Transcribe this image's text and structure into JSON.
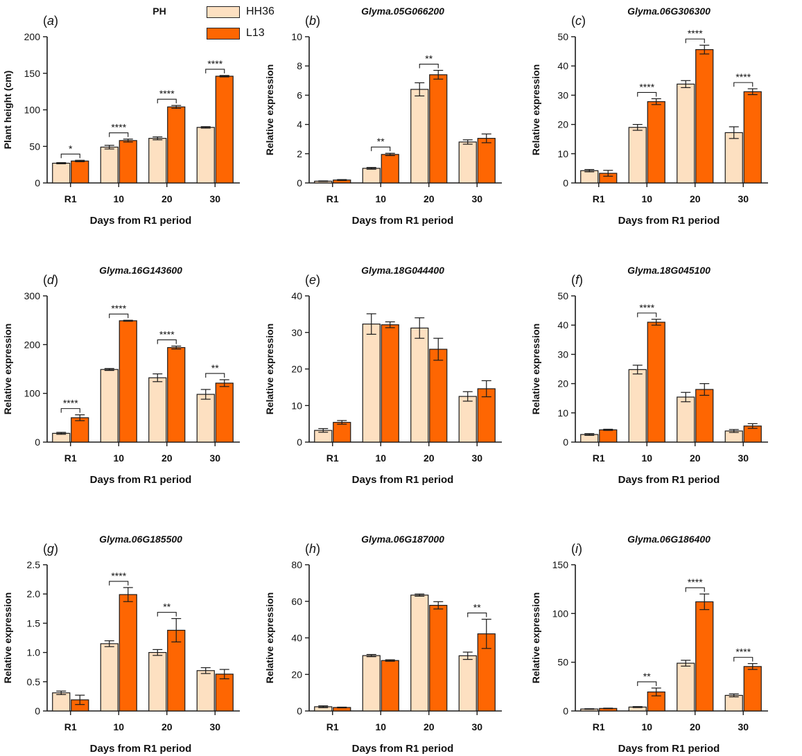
{
  "colors": {
    "HH36": "#fde0c1",
    "L13": "#fe6602",
    "stroke": "#1a1a1a"
  },
  "legend": [
    {
      "name": "HH36",
      "color": "#fde0c1"
    },
    {
      "name": "L13",
      "color": "#fe6602"
    }
  ],
  "chart_data": [
    {
      "type": "bar",
      "panel": "(a)",
      "title": "PH",
      "title_italic": false,
      "categories": [
        "R1",
        "10",
        "20",
        "30"
      ],
      "xlabel": "Days from R1 period",
      "ylabel": "Plant height (cm)",
      "ylim": [
        0,
        200
      ],
      "yticks": [
        "0",
        "50",
        "100",
        "150",
        "200"
      ],
      "series": [
        {
          "name": "HH36",
          "values": [
            27,
            49,
            61,
            76
          ],
          "errors": [
            0.8,
            2.5,
            2,
            1
          ]
        },
        {
          "name": "L13",
          "values": [
            30,
            58,
            104,
            146
          ],
          "errors": [
            1,
            2,
            2,
            1
          ]
        }
      ],
      "significance": [
        "*",
        "****",
        "****",
        "****"
      ]
    },
    {
      "type": "bar",
      "panel": "(b)",
      "title": "Glyma.05G066200",
      "title_italic": true,
      "categories": [
        "R1",
        "10",
        "20",
        "30"
      ],
      "xlabel": "Days from R1 period",
      "ylabel": "Relative expression",
      "ylim": [
        0,
        10
      ],
      "yticks": [
        "0",
        "2",
        "4",
        "6",
        "8",
        "10"
      ],
      "series": [
        {
          "name": "HH36",
          "values": [
            0.12,
            1.0,
            6.4,
            2.8
          ],
          "errors": [
            0.02,
            0.06,
            0.45,
            0.15
          ]
        },
        {
          "name": "L13",
          "values": [
            0.2,
            1.95,
            7.4,
            3.05
          ],
          "errors": [
            0.03,
            0.08,
            0.3,
            0.3
          ]
        }
      ],
      "significance": [
        "",
        "**",
        "**",
        ""
      ]
    },
    {
      "type": "bar",
      "panel": "(c)",
      "title": "Glyma.06G306300",
      "title_italic": true,
      "categories": [
        "R1",
        "10",
        "20",
        "30"
      ],
      "xlabel": "Days from R1 period",
      "ylabel": "Relative expression",
      "ylim": [
        0,
        50
      ],
      "yticks": [
        "0",
        "10",
        "20",
        "30",
        "40",
        "50"
      ],
      "series": [
        {
          "name": "HH36",
          "values": [
            4.2,
            19,
            33.8,
            17.2
          ],
          "errors": [
            0.4,
            1,
            1.2,
            2
          ]
        },
        {
          "name": "L13",
          "values": [
            3.3,
            27.8,
            45.6,
            31.2
          ],
          "errors": [
            1,
            1,
            1.5,
            1
          ]
        }
      ],
      "significance": [
        "",
        "****",
        "****",
        "****"
      ]
    },
    {
      "type": "bar",
      "panel": "(d)",
      "title": "Glyma.16G143600",
      "title_italic": true,
      "categories": [
        "R1",
        "10",
        "20",
        "30"
      ],
      "xlabel": "Days from R1 period",
      "ylabel": "Relative expression",
      "ylim": [
        0,
        300
      ],
      "yticks": [
        "0",
        "100",
        "200",
        "300"
      ],
      "series": [
        {
          "name": "HH36",
          "values": [
            18,
            149,
            132,
            98
          ],
          "errors": [
            2,
            2,
            8,
            10
          ]
        },
        {
          "name": "L13",
          "values": [
            50,
            249,
            194,
            121
          ],
          "errors": [
            6,
            1,
            3,
            7
          ]
        }
      ],
      "significance": [
        "****",
        "****",
        "****",
        "**"
      ]
    },
    {
      "type": "bar",
      "panel": "(e)",
      "title": "Glyma.18G044400",
      "title_italic": true,
      "categories": [
        "R1",
        "10",
        "20",
        "30"
      ],
      "xlabel": "Days from R1 period",
      "ylabel": "Relative expression",
      "ylim": [
        0,
        40
      ],
      "yticks": [
        "0",
        "10",
        "20",
        "30",
        "40"
      ],
      "series": [
        {
          "name": "HH36",
          "values": [
            3.2,
            32.3,
            31.2,
            12.5
          ],
          "errors": [
            0.5,
            2.8,
            2.8,
            1.3
          ]
        },
        {
          "name": "L13",
          "values": [
            5.4,
            32.1,
            25.4,
            14.6
          ],
          "errors": [
            0.5,
            0.8,
            3,
            2.2
          ]
        }
      ],
      "significance": [
        "",
        "",
        "",
        ""
      ]
    },
    {
      "type": "bar",
      "panel": "(f)",
      "title": "Glyma.18G045100",
      "title_italic": true,
      "categories": [
        "R1",
        "10",
        "20",
        "30"
      ],
      "xlabel": "Days from R1 period",
      "ylabel": "Relative expression",
      "ylim": [
        0,
        50
      ],
      "yticks": [
        "0",
        "10",
        "20",
        "30",
        "40",
        "50"
      ],
      "series": [
        {
          "name": "HH36",
          "values": [
            2.6,
            24.8,
            15.4,
            3.8
          ],
          "errors": [
            0.3,
            1.5,
            1.6,
            0.5
          ]
        },
        {
          "name": "L13",
          "values": [
            4.2,
            41,
            18,
            5.5
          ],
          "errors": [
            0.2,
            1,
            2,
            0.8
          ]
        }
      ],
      "significance": [
        "",
        "****",
        "",
        ""
      ]
    },
    {
      "type": "bar",
      "panel": "(g)",
      "title": "Glyma.06G185500",
      "title_italic": true,
      "categories": [
        "R1",
        "10",
        "20",
        "30"
      ],
      "xlabel": "Days from R1 period",
      "ylabel": "Relative expression",
      "ylim": [
        0,
        2.5
      ],
      "yticks": [
        "0",
        "0.5",
        "1.0",
        "1.5",
        "2.0",
        "2.5"
      ],
      "series": [
        {
          "name": "HH36",
          "values": [
            0.31,
            1.15,
            1.0,
            0.69
          ],
          "errors": [
            0.03,
            0.05,
            0.05,
            0.05
          ]
        },
        {
          "name": "L13",
          "values": [
            0.19,
            1.99,
            1.38,
            0.63
          ],
          "errors": [
            0.08,
            0.12,
            0.2,
            0.08
          ]
        }
      ],
      "significance": [
        "",
        "****",
        "**",
        ""
      ]
    },
    {
      "type": "bar",
      "panel": "(h)",
      "title": "Glyma.06G187000",
      "title_italic": true,
      "categories": [
        "R1",
        "10",
        "20",
        "30"
      ],
      "xlabel": "Days from R1 period",
      "ylabel": "Relative expression",
      "ylim": [
        0,
        80
      ],
      "yticks": [
        "0",
        "20",
        "40",
        "60",
        "80"
      ],
      "series": [
        {
          "name": "HH36",
          "values": [
            2.3,
            30.3,
            63.4,
            30.2
          ],
          "errors": [
            0.5,
            0.6,
            0.6,
            2
          ]
        },
        {
          "name": "L13",
          "values": [
            1.9,
            27.6,
            57.8,
            42.2
          ],
          "errors": [
            0.2,
            0.4,
            2,
            8
          ]
        }
      ],
      "significance": [
        "",
        "",
        "",
        "**"
      ]
    },
    {
      "type": "bar",
      "panel": "(i)",
      "title": "Glyma.06G186400",
      "title_italic": true,
      "categories": [
        "R1",
        "10",
        "20",
        "30"
      ],
      "xlabel": "Days from R1 period",
      "ylabel": "Relative expression",
      "ylim": [
        0,
        150
      ],
      "yticks": [
        "0",
        "50",
        "100",
        "150"
      ],
      "series": [
        {
          "name": "HH36",
          "values": [
            2,
            4,
            49,
            16
          ],
          "errors": [
            0.3,
            0.5,
            3,
            1.5
          ]
        },
        {
          "name": "L13",
          "values": [
            2.6,
            19.5,
            112,
            45.6
          ],
          "errors": [
            0.3,
            4,
            8,
            3
          ]
        }
      ],
      "significance": [
        "",
        "**",
        "****",
        "****"
      ]
    }
  ]
}
